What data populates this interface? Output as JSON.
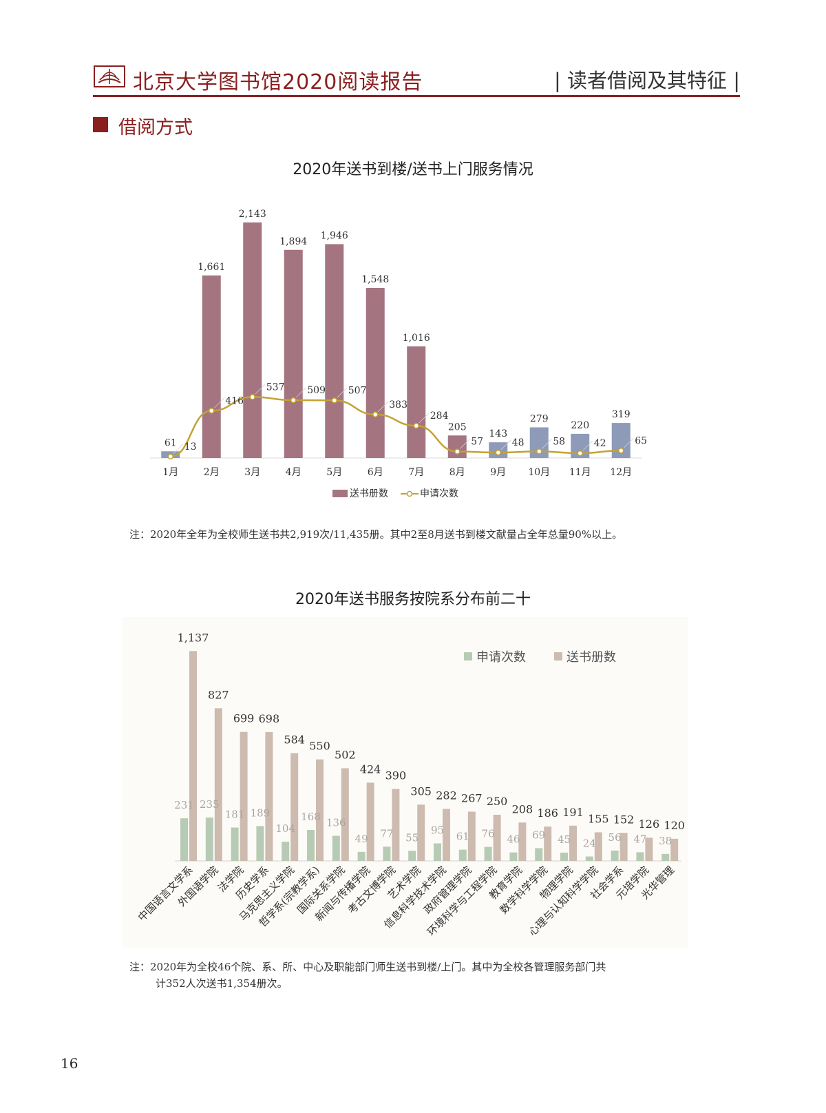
{
  "header": {
    "report_title": "北京大学图书馆2020阅读报告",
    "section_tag": "| 读者借阅及其特征 |"
  },
  "section": {
    "title": "借阅方式"
  },
  "colors": {
    "brand": "#8a1f1f",
    "chart1_bar_main": "#a47580",
    "chart1_bar_alt": "#8d9bb8",
    "chart1_line": "#c4a232",
    "chart2_applications": "#b7cbb4",
    "chart2_books": "#cdbbb0",
    "chart2_background": "#fdfbf8"
  },
  "chart_data": [
    {
      "type": "bar",
      "title": "2020年送书到楼/送书上门服务情况",
      "categories": [
        "1月",
        "2月",
        "3月",
        "4月",
        "5月",
        "6月",
        "7月",
        "8月",
        "9月",
        "10月",
        "11月",
        "12月"
      ],
      "series": [
        {
          "name": "送书册数",
          "type": "bar",
          "values": [
            61,
            1661,
            2143,
            1894,
            1946,
            1548,
            1016,
            205,
            143,
            279,
            220,
            319
          ],
          "labels": [
            "61",
            "1,661",
            "2,143",
            "1,894",
            "1,946",
            "1,548",
            "1,016",
            "205",
            "143",
            "279",
            "220",
            "319"
          ]
        },
        {
          "name": "申请次数",
          "type": "line",
          "values": [
            13,
            416,
            537,
            509,
            507,
            383,
            284,
            57,
            48,
            58,
            42,
            65
          ],
          "labels": [
            "13",
            "416",
            "537",
            "509",
            "507",
            "383",
            "284",
            "57",
            "48",
            "58",
            "42",
            "65"
          ]
        }
      ],
      "ylim": [
        0,
        2350
      ],
      "legend": "bottom",
      "grid": false
    },
    {
      "type": "bar",
      "title": "2020年送书服务按院系分布前二十",
      "categories": [
        "中国语言文学系",
        "外国语学院",
        "法学院",
        "历史学系",
        "马克思主义学院",
        "哲学系(宗教学系)",
        "国际关系学院",
        "新闻与传播学院",
        "考古文博学院",
        "艺术学院",
        "信息科学技术学院",
        "政府管理学院",
        "环境科学与工程学院",
        "教育学院",
        "数学科学学院",
        "物理学院",
        "心理与认知科学学院",
        "社会学系",
        "元培学院",
        "光华管理"
      ],
      "series": [
        {
          "name": "申请次数",
          "values": [
            231,
            235,
            181,
            189,
            104,
            168,
            136,
            49,
            77,
            55,
            95,
            61,
            76,
            46,
            69,
            45,
            24,
            56,
            47,
            38
          ],
          "labels": [
            "231",
            "235",
            "181",
            "189",
            "104",
            "168",
            "136",
            "49",
            "77",
            "55",
            "95",
            "61",
            "76",
            "46",
            "69",
            "45",
            "24",
            "56",
            "47",
            "38"
          ]
        },
        {
          "name": "送书册数",
          "values": [
            1137,
            827,
            699,
            698,
            584,
            550,
            502,
            424,
            390,
            305,
            282,
            267,
            250,
            208,
            186,
            191,
            155,
            152,
            126,
            120
          ],
          "labels": [
            "1,137",
            "827",
            "699",
            "698",
            "584",
            "550",
            "502",
            "424",
            "390",
            "305",
            "282",
            "267",
            "250",
            "208",
            "186",
            "191",
            "155",
            "152",
            "126",
            "120"
          ]
        }
      ],
      "ylim": [
        0,
        1250
      ],
      "legend": "top-right",
      "grid": false
    }
  ],
  "notes": {
    "chart1": "注：2020年全年为全校师生送书共2,919次/11,435册。其中2至8月送书到楼文献量占全年总量90%以上。",
    "chart2_line1": "注：2020年为全校46个院、系、所、中心及职能部门师生送书到楼/上门。其中为全校各管理服务部门共",
    "chart2_line2": "计352人次送书1,354册次。"
  },
  "page": {
    "number": "16"
  }
}
